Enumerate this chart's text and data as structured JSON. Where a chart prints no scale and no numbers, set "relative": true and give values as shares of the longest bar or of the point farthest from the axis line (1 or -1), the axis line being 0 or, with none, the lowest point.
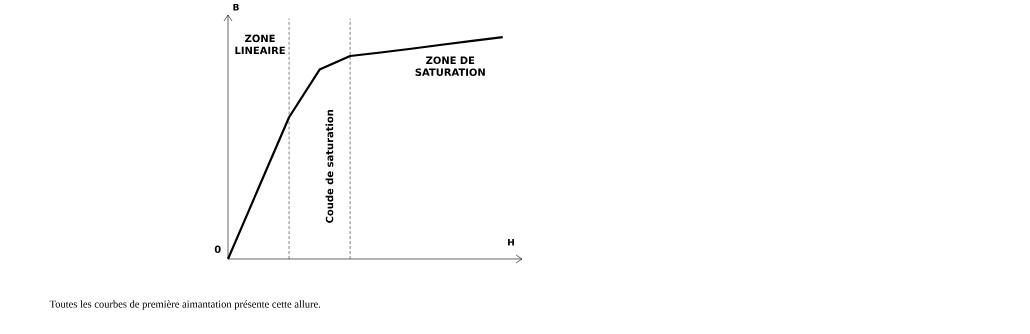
{
  "chart_data": {
    "type": "line",
    "relative": true,
    "xlabel": "H",
    "ylabel": "B",
    "categories": [
      null,
      null,
      null,
      null,
      null,
      null,
      null,
      null,
      null,
      null
    ],
    "values": [
      0,
      0.32,
      0.639,
      0.854,
      0.915,
      0.931,
      0.948,
      0.966,
      0.983,
      1
    ],
    "color": "#000000",
    "marker": "none",
    "line_style": "solid",
    "annotations": [
      "0",
      "ZONE LINEAIRE",
      "Coude de saturation",
      "ZONE DE SATURATION",
      "Toutes les courbes de première aimantation présente cette allure."
    ]
  }
}
